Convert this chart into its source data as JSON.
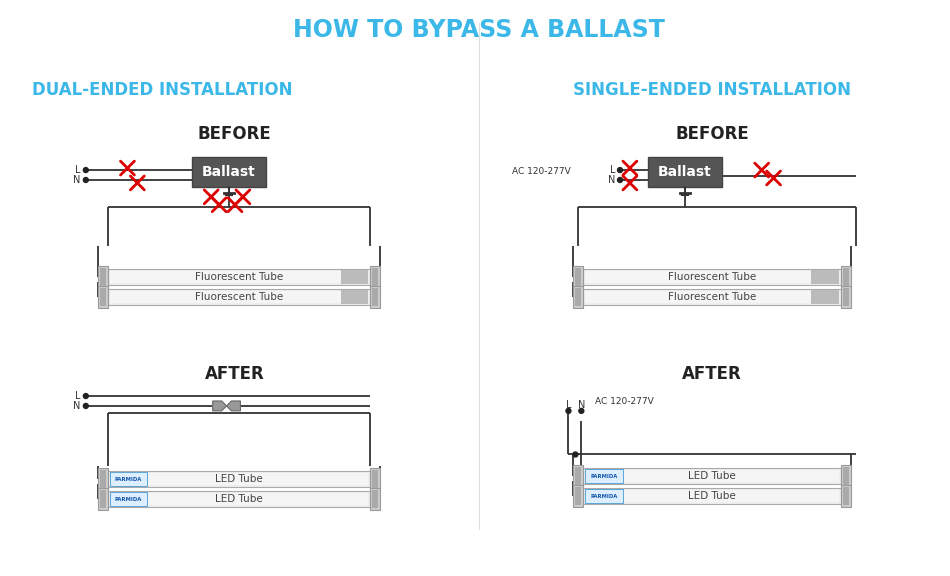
{
  "title": "HOW TO BYPASS A BALLAST",
  "title_color": "#3BB8E8",
  "title_fontsize": 17,
  "section_left": "DUAL-ENDED INSTALLATION",
  "section_right": "SINGLE-ENDED INSTALLATION",
  "section_color": "#3BB8E8",
  "section_fontsize": 12,
  "before_label": "BEFORE",
  "after_label": "AFTER",
  "label_color": "#222222",
  "label_fontsize": 12,
  "ballast_text": "Ballast",
  "tube_label_fluor": "Fluorescent Tube",
  "tube_label_led": "LED Tube",
  "wire_color": "#333333",
  "cross_color": "#dd0000",
  "bg_color": "#ffffff"
}
